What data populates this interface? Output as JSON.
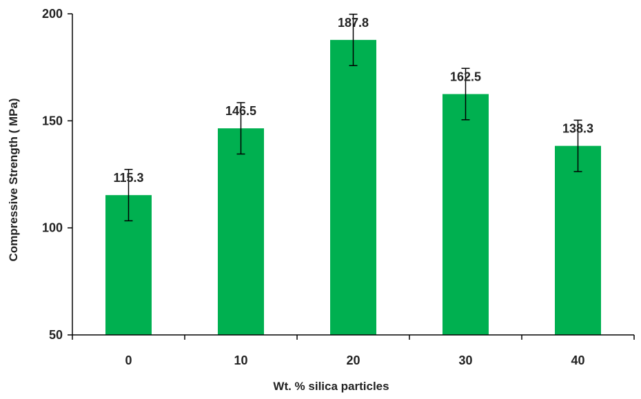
{
  "chart_data": {
    "type": "bar",
    "categories": [
      "0",
      "10",
      "20",
      "30",
      "40"
    ],
    "values": [
      115.3,
      146.5,
      187.8,
      162.5,
      138.3
    ],
    "value_labels": [
      "115.3",
      "146.5",
      "187.8",
      "162.5",
      "138.3"
    ],
    "error": [
      12,
      12,
      12,
      12,
      12
    ],
    "xlabel": "Wt. % silica particles",
    "ylabel": "Compressive Strength ( MPa)",
    "ylim": [
      50,
      200
    ],
    "yticks": [
      50,
      100,
      150,
      200
    ],
    "ytick_labels": [
      "50",
      "100",
      "150",
      "200"
    ],
    "grid": false,
    "bar_color": "#00b050",
    "axis_color": "#000000",
    "errorbar_color": "#000000"
  }
}
